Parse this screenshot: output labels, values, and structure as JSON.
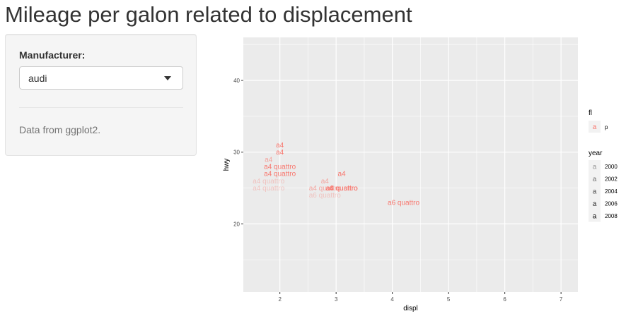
{
  "page": {
    "title": "Mileage per galon related to displacement"
  },
  "sidebar": {
    "manufacturer_label": "Manufacturer:",
    "manufacturer_selected": "audi",
    "help_text": "Data from ggplot2."
  },
  "chart_data": {
    "type": "scatter",
    "marker": "text",
    "xlabel": "displ",
    "ylabel": "hwy",
    "xlim": [
      1.35,
      7.3
    ],
    "ylim": [
      10.5,
      46
    ],
    "x_ticks": [
      2,
      3,
      4,
      5,
      6,
      7
    ],
    "y_ticks": [
      20,
      30,
      40
    ],
    "grid": true,
    "background": "#ebebeb",
    "points": [
      {
        "x": 1.8,
        "y": 29,
        "label": "a4",
        "year": 1999
      },
      {
        "x": 1.8,
        "y": 29,
        "label": "a4",
        "year": 1999
      },
      {
        "x": 2.0,
        "y": 31,
        "label": "a4",
        "year": 2008
      },
      {
        "x": 2.0,
        "y": 30,
        "label": "a4",
        "year": 2008
      },
      {
        "x": 2.8,
        "y": 26,
        "label": "a4",
        "year": 1999
      },
      {
        "x": 2.8,
        "y": 26,
        "label": "a4",
        "year": 1999
      },
      {
        "x": 3.1,
        "y": 27,
        "label": "a4",
        "year": 2008
      },
      {
        "x": 1.8,
        "y": 26,
        "label": "a4 quattro",
        "year": 1999
      },
      {
        "x": 1.8,
        "y": 25,
        "label": "a4 quattro",
        "year": 1999
      },
      {
        "x": 2.0,
        "y": 28,
        "label": "a4 quattro",
        "year": 2008
      },
      {
        "x": 2.0,
        "y": 27,
        "label": "a4 quattro",
        "year": 2008
      },
      {
        "x": 2.8,
        "y": 25,
        "label": "a4 quattro",
        "year": 1999
      },
      {
        "x": 2.8,
        "y": 25,
        "label": "a4 quattro",
        "year": 1999
      },
      {
        "x": 3.1,
        "y": 25,
        "label": "a4 quattro",
        "year": 2008
      },
      {
        "x": 3.1,
        "y": 25,
        "label": "a4 quattro",
        "year": 2008
      },
      {
        "x": 2.8,
        "y": 24,
        "label": "a6 quattro",
        "year": 1999
      },
      {
        "x": 3.1,
        "y": 25,
        "label": "a6 quattro",
        "year": 2008
      },
      {
        "x": 4.2,
        "y": 23,
        "label": "a6 quattro",
        "year": 2008
      }
    ],
    "legend": {
      "placement": "right",
      "fl": {
        "title": "fl",
        "key_glyph": "a",
        "entries": [
          {
            "label": "p",
            "color": "#F8766D"
          }
        ]
      },
      "year": {
        "title": "year",
        "key_glyph": "a",
        "entries": [
          {
            "label": "2000",
            "alpha": 0.4
          },
          {
            "label": "2002",
            "alpha": 0.55
          },
          {
            "label": "2004",
            "alpha": 0.7
          },
          {
            "label": "2006",
            "alpha": 0.85
          },
          {
            "label": "2008",
            "alpha": 1.0
          }
        ]
      }
    },
    "colors": {
      "point": "#F8766D",
      "panel": "#ebebeb",
      "grid": "#ffffff"
    }
  }
}
